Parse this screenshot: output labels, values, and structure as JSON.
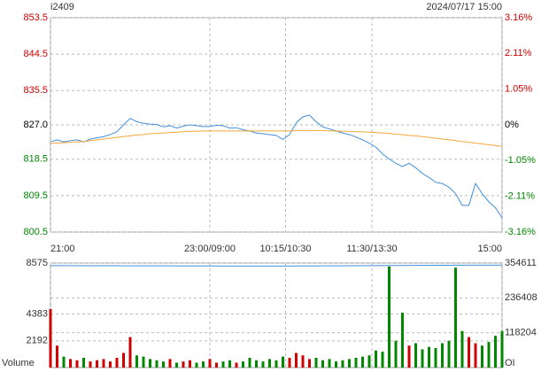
{
  "chart_data": [
    {
      "type": "line",
      "title": "i2409",
      "subtitle": "2024/07/17 15:00",
      "x": [
        0,
        5,
        10,
        15,
        20,
        25,
        30,
        35,
        40,
        45,
        50,
        55,
        60,
        65,
        70,
        75,
        80,
        85,
        90,
        95,
        100,
        105,
        110,
        115,
        120,
        125,
        130,
        135,
        140,
        145,
        150,
        155,
        160,
        165,
        170,
        175,
        180,
        185,
        190,
        195,
        200,
        205,
        210,
        215,
        220,
        225,
        230,
        235,
        240,
        245,
        250,
        255,
        260,
        265,
        270,
        275,
        280,
        285,
        290,
        295,
        300,
        305,
        310,
        315,
        320,
        325,
        330,
        335,
        340
      ],
      "series": [
        {
          "color": "#3f8fdc",
          "values": [
            822.8,
            823.3,
            822.8,
            823.1,
            823.3,
            822.8,
            823.5,
            823.8,
            824.1,
            824.6,
            825.3,
            827.0,
            828.6,
            827.8,
            827.4,
            827.2,
            827.1,
            826.5,
            826.8,
            826.2,
            826.7,
            827.0,
            826.8,
            826.6,
            826.6,
            826.9,
            826.8,
            826.2,
            826.3,
            825.8,
            825.5,
            825.0,
            824.8,
            824.6,
            824.4,
            823.4,
            824.6,
            827.5,
            829.0,
            829.4,
            827.8,
            826.5,
            826.0,
            825.5,
            825.0,
            824.6,
            824.0,
            823.3,
            822.5,
            821.5,
            819.8,
            818.6,
            817.5,
            816.7,
            817.5,
            816.4,
            815.0,
            814.0,
            812.8,
            812.5,
            811.6,
            810.0,
            807.1,
            807.1,
            812.5,
            810.0,
            808.0,
            806.5,
            804.0
          ]
        },
        {
          "color": "#f2a73a",
          "values": [
            822.4,
            822.5,
            822.6,
            822.7,
            822.8,
            822.9,
            823.1,
            823.3,
            823.5,
            823.7,
            823.9,
            824.1,
            824.3,
            824.5,
            824.6,
            824.8,
            824.9,
            825.0,
            825.1,
            825.2,
            825.3,
            825.4,
            825.4,
            825.5,
            825.5,
            825.5,
            825.5,
            825.5,
            825.5,
            825.5,
            825.5,
            825.5,
            825.5,
            825.5,
            825.5,
            825.5,
            825.5,
            825.6,
            825.6,
            825.6,
            825.6,
            825.6,
            825.5,
            825.5,
            825.4,
            825.4,
            825.3,
            825.3,
            825.2,
            825.1,
            825.0,
            824.9,
            824.7,
            824.6,
            824.4,
            824.3,
            824.1,
            823.9,
            823.7,
            823.5,
            823.3,
            823.1,
            822.9,
            822.7,
            822.5,
            822.3,
            822.1,
            821.9,
            821.7
          ]
        }
      ],
      "xlim": [
        0,
        340
      ],
      "xticks": [
        {
          "value": 0,
          "label": "21:00"
        },
        {
          "value": 120,
          "label": "23:00/09:00"
        },
        {
          "value": 177,
          "label": "10:15/10:30"
        },
        {
          "value": 242,
          "label": "11:30/13:30"
        },
        {
          "value": 340,
          "label": "15:00"
        }
      ],
      "ylim": [
        800.5,
        853.5
      ],
      "yticks": [
        853.5,
        844.5,
        835.5,
        {
          "value": 827,
          "label": "827.0"
        },
        818.5,
        809.5,
        800.5
      ],
      "y2lim": [
        -3.16,
        3.16
      ],
      "y2ticks": [
        {
          "value": 3.16,
          "label": "3.16%"
        },
        {
          "value": 2.11,
          "label": "2.11%"
        },
        {
          "value": 1.05,
          "label": "1.05%"
        },
        {
          "value": 0,
          "label": "0%"
        },
        {
          "value": -1.05,
          "label": "-1.05%"
        },
        {
          "value": -2.11,
          "label": "-2.11%"
        },
        {
          "value": -3.16,
          "label": "-3.16%"
        }
      ],
      "up_color": "#d00000",
      "down_color": "#008800",
      "grid": true
    },
    {
      "type": "bar",
      "ylabel": "Volume",
      "y2label": "OI",
      "x": [
        0,
        5,
        10,
        15,
        20,
        25,
        30,
        35,
        40,
        45,
        50,
        55,
        60,
        65,
        70,
        75,
        80,
        85,
        90,
        95,
        100,
        105,
        110,
        115,
        120,
        125,
        130,
        135,
        140,
        145,
        150,
        155,
        160,
        165,
        170,
        175,
        180,
        185,
        190,
        195,
        200,
        205,
        210,
        215,
        220,
        225,
        230,
        235,
        240,
        245,
        250,
        255,
        260,
        265,
        270,
        275,
        280,
        285,
        290,
        295,
        300,
        305,
        310,
        315,
        320,
        325,
        330,
        335,
        340
      ],
      "values": [
        4800,
        1800,
        900,
        700,
        600,
        800,
        500,
        600,
        700,
        500,
        800,
        1200,
        2500,
        1000,
        900,
        700,
        600,
        500,
        700,
        400,
        500,
        600,
        400,
        500,
        700,
        400,
        500,
        600,
        400,
        500,
        800,
        600,
        500,
        700,
        600,
        900,
        800,
        1200,
        1000,
        700,
        800,
        600,
        700,
        500,
        600,
        700,
        800,
        900,
        1000,
        1400,
        1300,
        8300,
        2200,
        4500,
        1800,
        2000,
        1500,
        1700,
        1600,
        2000,
        2200,
        8200,
        3000,
        2500,
        2000,
        1800,
        2100,
        2600,
        3000
      ],
      "series": [
        {
          "axis": "y2",
          "color": "#3f8fdc",
          "values": [
            346000,
            345900,
            345850,
            345800,
            345750,
            345700,
            345650,
            345600,
            345550,
            345500,
            345450,
            345400,
            345350,
            345300,
            345250,
            345200,
            345150,
            345100,
            345050,
            345000,
            344950,
            344900,
            344850,
            344800,
            344750,
            344700,
            344650,
            344600,
            344550,
            344500,
            344500,
            344500,
            344500,
            344500,
            344500,
            344500,
            344600,
            344700,
            344800,
            344900,
            345000,
            345100,
            345200,
            345300,
            345400,
            345500,
            345600,
            345700,
            345800,
            345900,
            346000,
            346200,
            346400,
            346500,
            346600,
            346700,
            346800,
            346900,
            347000,
            347100,
            347200,
            347300,
            347400,
            347500,
            347500,
            347500,
            347600,
            347600,
            347700
          ]
        }
      ],
      "xlim": [
        0,
        340
      ],
      "ylim": [
        0,
        8575
      ],
      "yticks": [
        8575,
        4383,
        2192
      ],
      "y2lim": [
        0,
        354611
      ],
      "y2ticks": [
        354611,
        236408,
        118204
      ],
      "up_color": "#d00000",
      "down_color": "#008800",
      "grid": true
    }
  ]
}
